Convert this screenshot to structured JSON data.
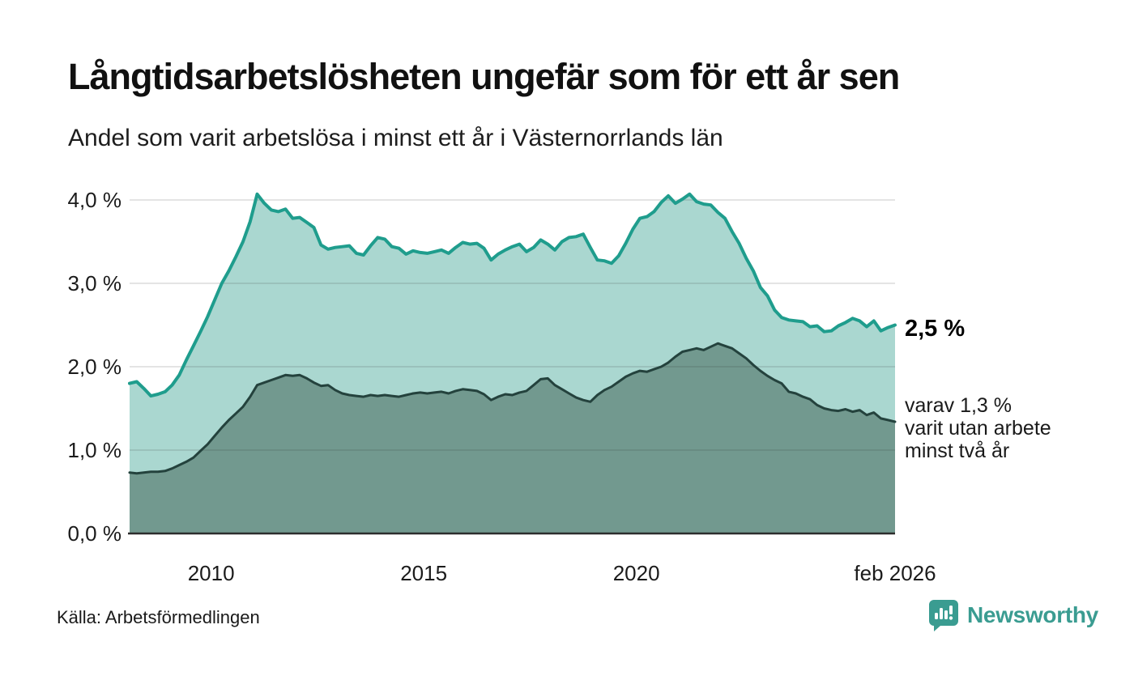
{
  "header": {
    "title": "Långtidsarbetslösheten ungefär som för ett år sen",
    "subtitle": "Andel som varit arbetslösa i minst ett år i Västernorrlands län"
  },
  "colors": {
    "accent_line": "#1f9d8d",
    "accent_fill": "#aad7d0",
    "dark_line": "#24423d",
    "dark_fill": "#72998f",
    "grid": "rgba(45,45,45,0.13)",
    "axis": "#2d2d2d",
    "brand": "#3a9c91"
  },
  "chart_data": {
    "type": "area",
    "title": "Långtidsarbetslösheten ungefär som för ett år sen",
    "subtitle": "Andel som varit arbetslösa i minst ett år i Västernorrlands län",
    "x_start": "2008-02",
    "x_end": "2026-02",
    "step_months": 2,
    "ylim": [
      0,
      4.3
    ],
    "grid": "on",
    "y_ticks": [
      {
        "label": "4,0 %",
        "value": 4
      },
      {
        "label": "3,0 %",
        "value": 3
      },
      {
        "label": "2,0 %",
        "value": 2
      },
      {
        "label": "1,0 %",
        "value": 1
      },
      {
        "label": "0,0 %",
        "value": 0
      }
    ],
    "x_ticks": [
      {
        "label": "2010",
        "month": 23
      },
      {
        "label": "2015",
        "month": 83
      },
      {
        "label": "2020",
        "month": 143
      },
      {
        "label": "feb 2026",
        "month": 216
      }
    ],
    "series": [
      {
        "name": "Andel som varit arbetslösa i minst ett år",
        "line_color": "#1f9d8d",
        "fill_color": "#aad7d0",
        "line_width": 4,
        "values": [
          1.8,
          1.82,
          1.74,
          1.65,
          1.67,
          1.7,
          1.78,
          1.9,
          2.08,
          2.25,
          2.42,
          2.6,
          2.8,
          3.0,
          3.15,
          3.32,
          3.5,
          3.74,
          4.07,
          3.96,
          3.88,
          3.86,
          3.89,
          3.78,
          3.79,
          3.73,
          3.67,
          3.46,
          3.41,
          3.43,
          3.44,
          3.45,
          3.36,
          3.34,
          3.45,
          3.55,
          3.53,
          3.44,
          3.42,
          3.35,
          3.39,
          3.37,
          3.36,
          3.38,
          3.4,
          3.36,
          3.43,
          3.49,
          3.47,
          3.48,
          3.42,
          3.28,
          3.35,
          3.4,
          3.44,
          3.47,
          3.38,
          3.43,
          3.52,
          3.47,
          3.4,
          3.5,
          3.55,
          3.56,
          3.59,
          3.43,
          3.28,
          3.27,
          3.24,
          3.33,
          3.48,
          3.65,
          3.78,
          3.8,
          3.86,
          3.97,
          4.05,
          3.96,
          4.01,
          4.07,
          3.98,
          3.95,
          3.94,
          3.85,
          3.78,
          3.62,
          3.48,
          3.3,
          3.15,
          2.95,
          2.85,
          2.68,
          2.59,
          2.56,
          2.55,
          2.54,
          2.48,
          2.49,
          2.42,
          2.43,
          2.49,
          2.53,
          2.58,
          2.55,
          2.48,
          2.55,
          2.43,
          2.47,
          2.5
        ]
      },
      {
        "name": "varav utan arbete minst två år",
        "line_color": "#24423d",
        "fill_color": "#72998f",
        "line_width": 3,
        "values": [
          0.73,
          0.72,
          0.73,
          0.74,
          0.74,
          0.75,
          0.78,
          0.82,
          0.86,
          0.91,
          0.99,
          1.07,
          1.17,
          1.27,
          1.36,
          1.44,
          1.52,
          1.64,
          1.78,
          1.81,
          1.84,
          1.87,
          1.9,
          1.89,
          1.9,
          1.86,
          1.81,
          1.77,
          1.78,
          1.72,
          1.68,
          1.66,
          1.65,
          1.64,
          1.66,
          1.65,
          1.66,
          1.65,
          1.64,
          1.66,
          1.68,
          1.69,
          1.68,
          1.69,
          1.7,
          1.68,
          1.71,
          1.73,
          1.72,
          1.71,
          1.67,
          1.6,
          1.64,
          1.67,
          1.66,
          1.69,
          1.71,
          1.78,
          1.85,
          1.86,
          1.78,
          1.73,
          1.68,
          1.63,
          1.6,
          1.58,
          1.66,
          1.72,
          1.76,
          1.82,
          1.88,
          1.92,
          1.95,
          1.94,
          1.97,
          2.0,
          2.05,
          2.12,
          2.18,
          2.2,
          2.22,
          2.2,
          2.24,
          2.28,
          2.25,
          2.22,
          2.16,
          2.1,
          2.02,
          1.95,
          1.89,
          1.84,
          1.8,
          1.7,
          1.68,
          1.64,
          1.61,
          1.54,
          1.5,
          1.48,
          1.47,
          1.49,
          1.46,
          1.48,
          1.42,
          1.45,
          1.38,
          1.36,
          1.34
        ]
      }
    ],
    "end_labels": {
      "primary": "2,5 %",
      "annotation_lines": {
        "0": "varav 1,3 %",
        "1": "varit utan arbete",
        "2": "minst två år"
      }
    }
  },
  "footer": {
    "source": "Källa: Arbetsförmedlingen",
    "brand_name": "Newsworthy"
  }
}
